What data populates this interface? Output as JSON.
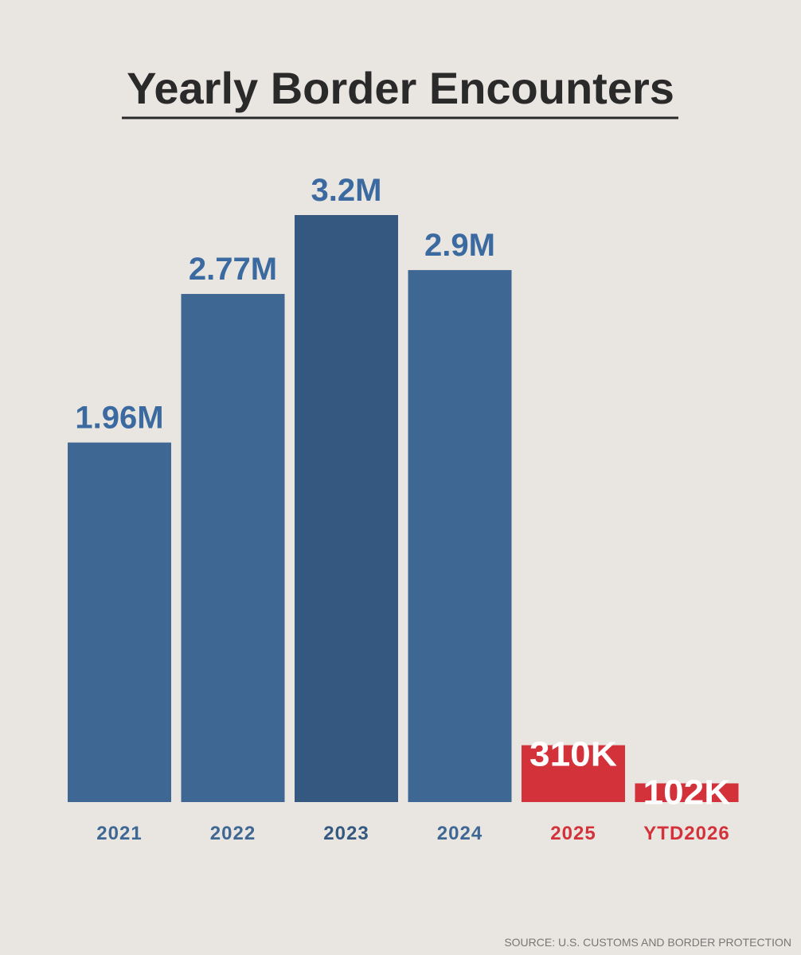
{
  "chart_data": {
    "type": "bar",
    "title": "Yearly Border Encounters",
    "categories": [
      "2021",
      "2022",
      "2023",
      "2024",
      "2025",
      "YTD2026"
    ],
    "values": [
      1960000,
      2770000,
      3200000,
      2900000,
      310000,
      102000
    ],
    "value_labels": [
      "1.96M",
      "2.77M",
      "3.2M",
      "2.9M",
      "310K",
      "102K"
    ],
    "colors": [
      "#3f6794",
      "#3f6794",
      "#34587f",
      "#3f6794",
      "#d4323b",
      "#d4323b"
    ],
    "source": "SOURCE: U.S. CUSTOMS AND BORDER PROTECTION"
  }
}
